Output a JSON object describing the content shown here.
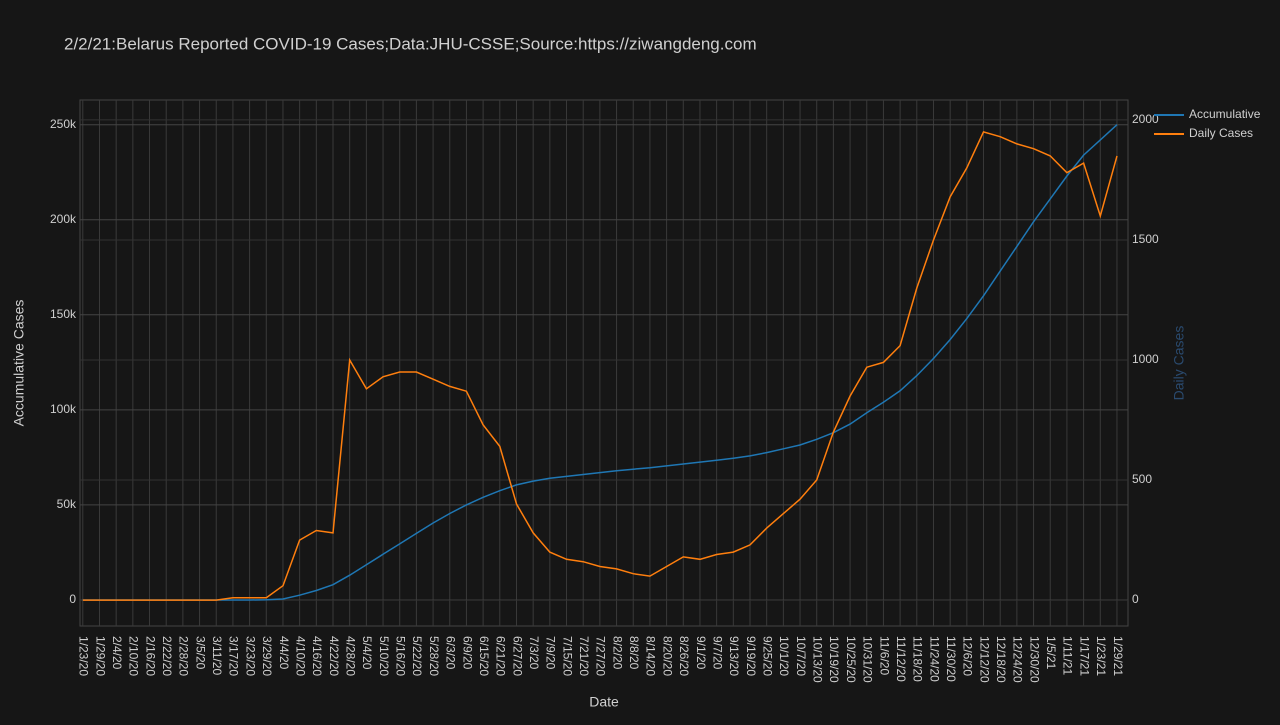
{
  "chart_data": {
    "type": "line",
    "title": "2/2/21:Belarus Reported COVID-19 Cases;Data:JHU-CSSE;Source:https://ziwangdeng.com",
    "x_label": "Date",
    "y_label": "Accumulative Cases",
    "y2_label": "Daily Cases",
    "x": [
      "1/23/20",
      "1/29/20",
      "2/4/20",
      "2/10/20",
      "2/16/20",
      "2/22/20",
      "2/28/20",
      "3/5/20",
      "3/11/20",
      "3/17/20",
      "3/23/20",
      "3/29/20",
      "4/4/20",
      "4/10/20",
      "4/16/20",
      "4/22/20",
      "4/28/20",
      "5/4/20",
      "5/10/20",
      "5/16/20",
      "5/22/20",
      "5/28/20",
      "6/3/20",
      "6/9/20",
      "6/15/20",
      "6/21/20",
      "6/27/20",
      "7/3/20",
      "7/9/20",
      "7/15/20",
      "7/21/20",
      "7/27/20",
      "8/2/20",
      "8/8/20",
      "8/14/20",
      "8/20/20",
      "8/26/20",
      "9/1/20",
      "9/7/20",
      "9/13/20",
      "9/19/20",
      "9/25/20",
      "10/1/20",
      "10/7/20",
      "10/13/20",
      "10/19/20",
      "10/25/20",
      "10/31/20",
      "11/6/20",
      "11/12/20",
      "11/18/20",
      "11/24/20",
      "11/30/20",
      "12/6/20",
      "12/12/20",
      "12/18/20",
      "12/24/20",
      "12/30/20",
      "1/5/21",
      "1/11/21",
      "1/17/21",
      "1/23/21",
      "1/29/21"
    ],
    "series": [
      {
        "name": "Accumulative",
        "color": "#1f77b4",
        "axis": "y",
        "values": [
          0,
          0,
          0,
          0,
          0,
          0,
          0,
          0,
          0,
          0,
          0,
          100,
          500,
          2500,
          5000,
          8000,
          13000,
          18500,
          24000,
          29500,
          35000,
          40500,
          45500,
          50000,
          54000,
          57500,
          60500,
          62500,
          64000,
          65000,
          66000,
          67000,
          68000,
          68800,
          69500,
          70500,
          71500,
          72500,
          73500,
          74500,
          75800,
          77500,
          79500,
          81500,
          84500,
          88000,
          92500,
          98500,
          104000,
          110000,
          118000,
          127000,
          137000,
          148000,
          160000,
          173000,
          186000,
          199000,
          211000,
          223000,
          234000,
          242000,
          250000
        ]
      },
      {
        "name": "Daily Cases",
        "color": "#ff7f0e",
        "axis": "y2",
        "values": [
          0,
          0,
          0,
          0,
          0,
          0,
          0,
          0,
          0,
          10,
          10,
          10,
          60,
          250,
          290,
          280,
          1000,
          880,
          930,
          950,
          950,
          920,
          890,
          870,
          730,
          640,
          400,
          280,
          200,
          170,
          160,
          140,
          130,
          110,
          100,
          140,
          180,
          170,
          190,
          200,
          230,
          300,
          360,
          420,
          500,
          700,
          850,
          970,
          990,
          1060,
          1300,
          1500,
          1680,
          1800,
          1950,
          1930,
          1900,
          1880,
          1850,
          1780,
          1820,
          1600,
          1850
        ]
      }
    ],
    "ylim": [
      -13700,
      263000
    ],
    "yticks": [
      0,
      {
        "value": 50000,
        "label": "50k"
      },
      {
        "value": 100000,
        "label": "100k"
      },
      {
        "value": 150000,
        "label": "150k"
      },
      {
        "value": 200000,
        "label": "200k"
      },
      {
        "value": 250000,
        "label": "250k"
      }
    ],
    "y2lim": [
      -108,
      2083
    ],
    "y2ticks": [
      0,
      500,
      1000,
      1500,
      2000
    ],
    "grid": true,
    "legend": "top-right"
  }
}
